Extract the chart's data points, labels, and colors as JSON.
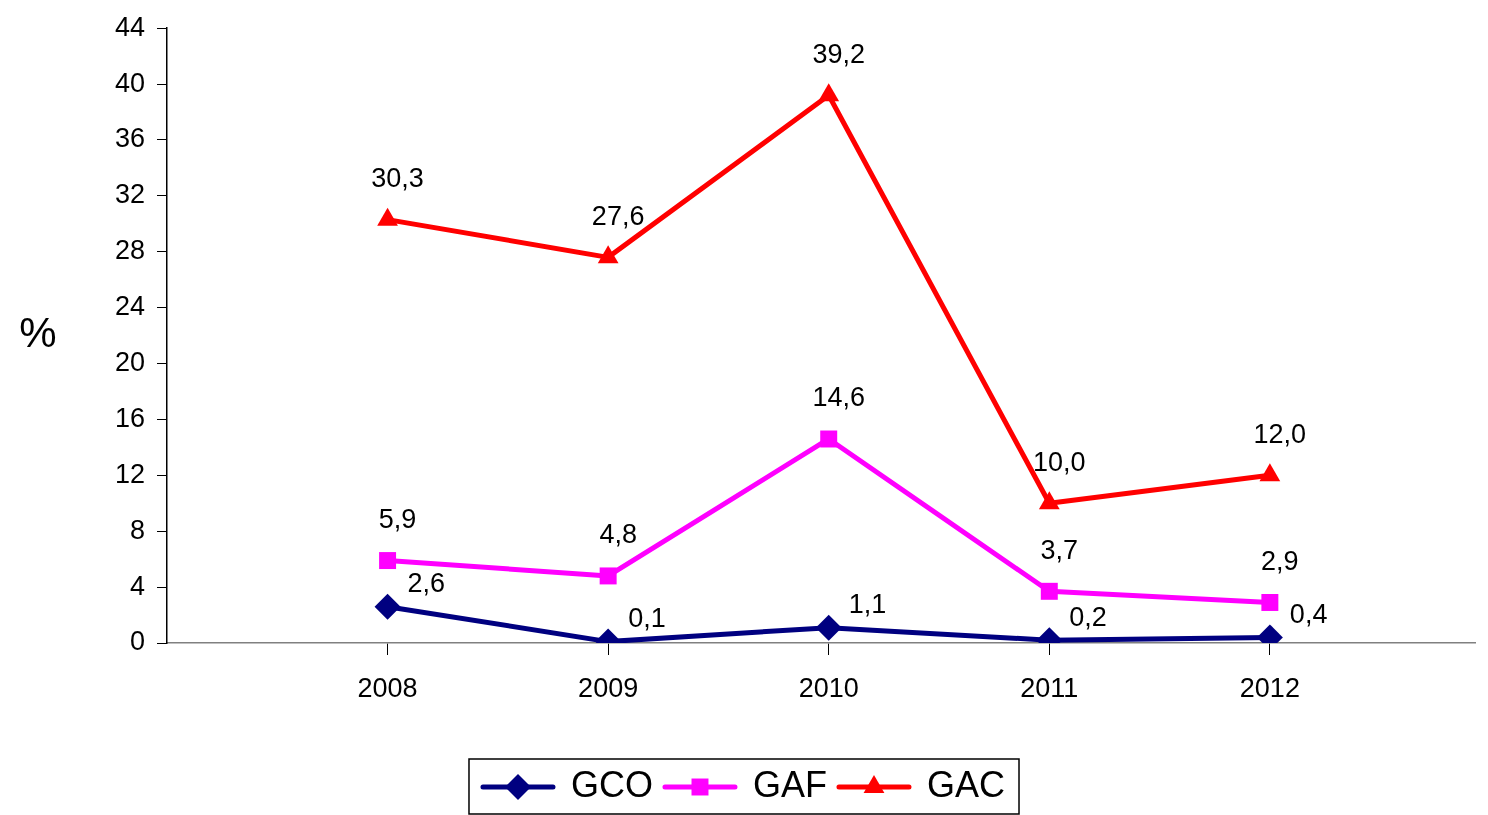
{
  "chart_data": {
    "type": "line",
    "ylabel": "%",
    "categories": [
      "2008",
      "2009",
      "2010",
      "2011",
      "2012"
    ],
    "ylim": [
      0,
      44
    ],
    "yticks": [
      0,
      4,
      8,
      12,
      16,
      20,
      24,
      28,
      32,
      36,
      40,
      44
    ],
    "grid": false,
    "legend": "bottom",
    "line_style": "solid",
    "series": [
      {
        "name": "GCO",
        "color": "#000080",
        "marker": "diamond",
        "values": [
          2.6,
          0.1,
          1.1,
          0.2,
          0.4
        ],
        "value_labels": [
          "2,6",
          "0,1",
          "1,1",
          "0,2",
          "0,4"
        ]
      },
      {
        "name": "GAF",
        "color": "#ff00ff",
        "marker": "square",
        "values": [
          5.9,
          4.8,
          14.6,
          3.7,
          2.9
        ],
        "value_labels": [
          "5,9",
          "4,8",
          "14,6",
          "3,7",
          "2,9"
        ]
      },
      {
        "name": "GAC",
        "color": "#ff0000",
        "marker": "triangle",
        "values": [
          30.3,
          27.6,
          39.2,
          10.0,
          12.0
        ],
        "value_labels": [
          "30,3",
          "27,6",
          "39,2",
          "10,0",
          "12,0"
        ]
      }
    ]
  }
}
